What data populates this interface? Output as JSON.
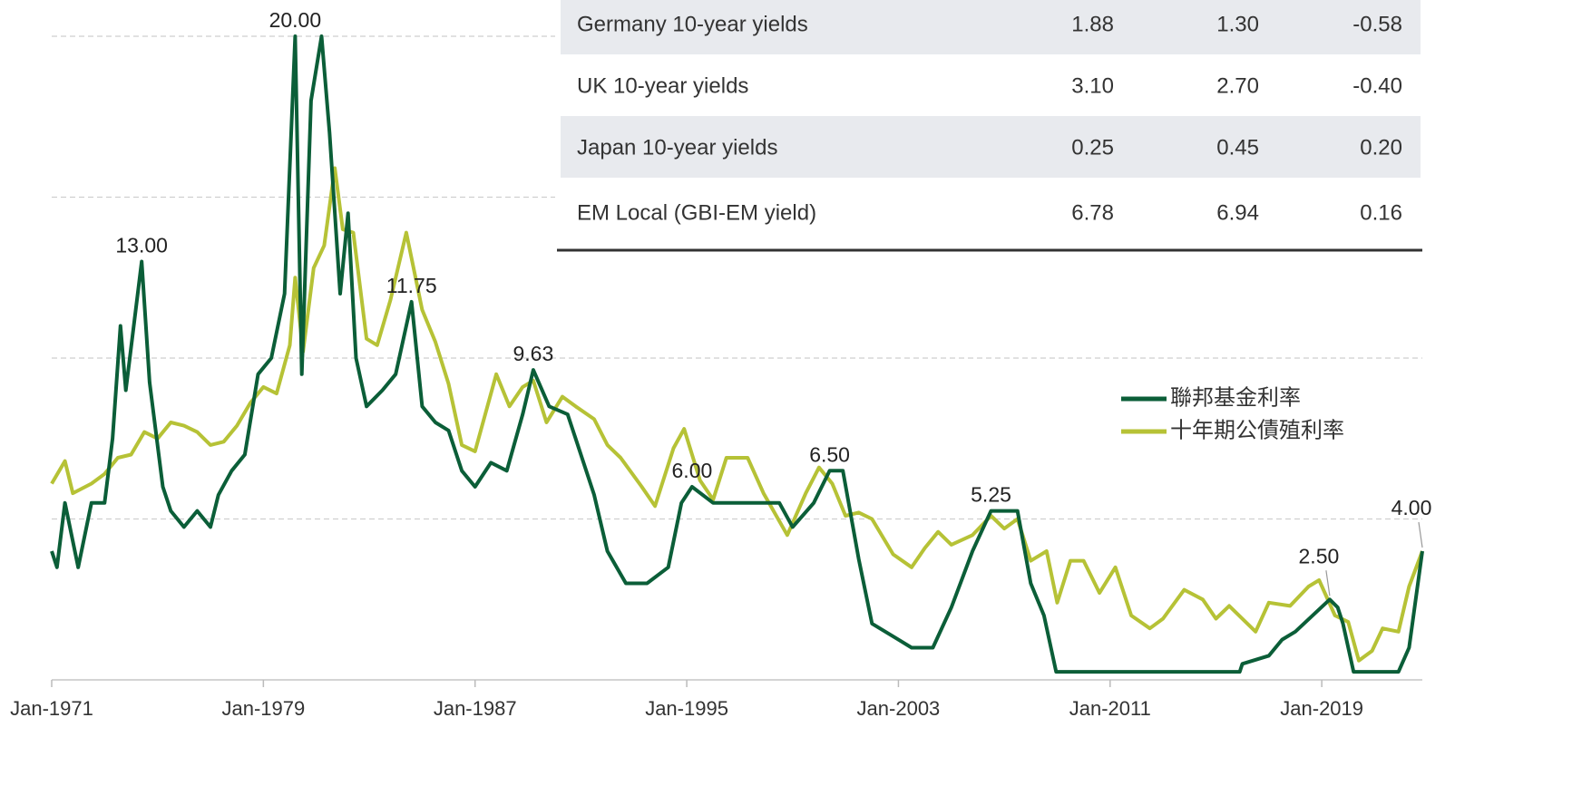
{
  "chart_data": {
    "type": "line",
    "xlim": [
      1971,
      2022.8
    ],
    "ylim": [
      0,
      21.1
    ],
    "xticks": [
      {
        "value": 1971,
        "label": "Jan-1971"
      },
      {
        "value": 1979,
        "label": "Jan-1979"
      },
      {
        "value": 1987,
        "label": "Jan-1987"
      },
      {
        "value": 1995,
        "label": "Jan-1995"
      },
      {
        "value": 2003,
        "label": "Jan-2003"
      },
      {
        "value": 2011,
        "label": "Jan-2011"
      },
      {
        "value": 2019,
        "label": "Jan-2019"
      }
    ],
    "yticks": [
      0,
      5,
      10,
      15,
      20
    ],
    "grid": true,
    "series": [
      {
        "name": "十年期公債殖利率",
        "color": "#b6c236",
        "x": [
          1971.0,
          1971.5,
          1971.8,
          1972.5,
          1973.0,
          1973.5,
          1974.0,
          1974.5,
          1975.0,
          1975.5,
          1976.0,
          1976.5,
          1977.0,
          1977.5,
          1978.0,
          1978.5,
          1979.0,
          1979.5,
          1980.0,
          1980.2,
          1980.5,
          1980.9,
          1981.3,
          1981.7,
          1982.0,
          1982.4,
          1982.9,
          1983.3,
          1983.8,
          1984.4,
          1985.0,
          1985.5,
          1986.0,
          1986.5,
          1987.0,
          1987.8,
          1988.3,
          1988.8,
          1989.2,
          1989.7,
          1990.3,
          1990.8,
          1991.5,
          1992.0,
          1992.5,
          1993.3,
          1993.8,
          1994.5,
          1994.9,
          1995.5,
          1996.0,
          1996.5,
          1997.3,
          1997.9,
          1998.8,
          1999.5,
          2000.0,
          2000.5,
          2001.0,
          2001.5,
          2002.0,
          2002.8,
          2003.5,
          2004.0,
          2004.5,
          2005.0,
          2005.8,
          2006.5,
          2007.0,
          2007.5,
          2008.0,
          2008.6,
          2009.0,
          2009.5,
          2010.0,
          2010.6,
          2011.2,
          2011.8,
          2012.5,
          2013.0,
          2013.8,
          2014.5,
          2015.0,
          2015.5,
          2016.5,
          2017.0,
          2017.8,
          2018.5,
          2018.9,
          2019.5,
          2020.0,
          2020.4,
          2020.9,
          2021.3,
          2021.9,
          2022.3,
          2022.8
        ],
        "values": [
          6.1,
          6.8,
          5.8,
          6.1,
          6.4,
          6.9,
          7.0,
          7.7,
          7.5,
          8.0,
          7.9,
          7.7,
          7.3,
          7.4,
          7.9,
          8.6,
          9.1,
          8.9,
          10.4,
          12.5,
          10.2,
          12.8,
          13.5,
          15.9,
          14.0,
          13.9,
          10.6,
          10.4,
          11.8,
          13.9,
          11.5,
          10.5,
          9.2,
          7.3,
          7.1,
          9.5,
          8.5,
          9.1,
          9.3,
          8.0,
          8.8,
          8.5,
          8.1,
          7.3,
          6.9,
          6.0,
          5.4,
          7.2,
          7.8,
          6.2,
          5.6,
          6.9,
          6.9,
          5.8,
          4.5,
          5.8,
          6.6,
          6.1,
          5.1,
          5.2,
          5.0,
          3.9,
          3.5,
          4.1,
          4.6,
          4.2,
          4.5,
          5.1,
          4.7,
          5.0,
          3.7,
          4.0,
          2.4,
          3.7,
          3.7,
          2.7,
          3.5,
          2.0,
          1.6,
          1.9,
          2.8,
          2.5,
          1.9,
          2.3,
          1.5,
          2.4,
          2.3,
          2.9,
          3.1,
          2.0,
          1.8,
          0.6,
          0.9,
          1.6,
          1.5,
          2.9,
          4.0
        ]
      },
      {
        "name": "聯邦基金利率",
        "color": "#0b5e38",
        "x": [
          1971.0,
          1971.2,
          1971.5,
          1972.0,
          1972.5,
          1973.0,
          1973.3,
          1973.6,
          1973.8,
          1974.4,
          1974.7,
          1975.2,
          1975.5,
          1976.0,
          1976.5,
          1977.0,
          1977.3,
          1977.8,
          1978.3,
          1978.8,
          1979.3,
          1979.8,
          1980.2,
          1980.45,
          1980.8,
          1981.2,
          1981.5,
          1981.9,
          1982.2,
          1982.5,
          1982.9,
          1983.5,
          1984.0,
          1984.6,
          1985.0,
          1985.5,
          1986.0,
          1986.5,
          1987.0,
          1987.6,
          1988.2,
          1988.8,
          1989.2,
          1989.8,
          1990.5,
          1991.0,
          1991.5,
          1992.0,
          1992.7,
          1993.5,
          1994.3,
          1994.8,
          1995.2,
          1996.0,
          1997.0,
          1998.5,
          1999.0,
          1999.8,
          2000.4,
          2000.9,
          2001.5,
          2002.0,
          2003.0,
          2003.5,
          2004.3,
          2005.0,
          2005.8,
          2006.5,
          2007.5,
          2008.0,
          2008.5,
          2008.96,
          2015.9,
          2016.0,
          2017.0,
          2017.5,
          2018.0,
          2019.3,
          2019.6,
          2019.8,
          2020.2,
          2021.9,
          2022.3,
          2022.8
        ],
        "values": [
          4.0,
          3.5,
          5.5,
          3.5,
          5.5,
          5.5,
          7.5,
          11.0,
          9.0,
          13.0,
          9.25,
          6.0,
          5.25,
          4.75,
          5.25,
          4.75,
          5.75,
          6.5,
          7.0,
          9.5,
          10.0,
          12.0,
          20.0,
          9.5,
          18.0,
          20.0,
          17.0,
          12.0,
          14.5,
          10.0,
          8.5,
          9.0,
          9.5,
          11.75,
          8.5,
          8.0,
          7.75,
          6.5,
          6.0,
          6.75,
          6.5,
          8.25,
          9.63,
          8.5,
          8.25,
          7.0,
          5.75,
          4.0,
          3.0,
          3.0,
          3.5,
          5.5,
          6.0,
          5.5,
          5.5,
          5.5,
          4.75,
          5.5,
          6.5,
          6.5,
          3.75,
          1.75,
          1.25,
          1.0,
          1.0,
          2.25,
          4.0,
          5.25,
          5.25,
          3.0,
          2.0,
          0.25,
          0.25,
          0.5,
          0.75,
          1.25,
          1.5,
          2.5,
          2.25,
          1.75,
          0.25,
          0.25,
          1.0,
          4.0
        ]
      }
    ],
    "annotations": [
      {
        "text": "13.00",
        "x": 1974.4,
        "y": 13.0
      },
      {
        "text": "20.00",
        "x": 1980.2,
        "y": 20.0
      },
      {
        "text": "11.75",
        "x": 1984.6,
        "y": 11.75
      },
      {
        "text": "9.63",
        "x": 1989.2,
        "y": 9.63
      },
      {
        "text": "6.00",
        "x": 1995.2,
        "y": 6.0
      },
      {
        "text": "6.50",
        "x": 2000.4,
        "y": 6.5
      },
      {
        "text": "5.25",
        "x": 2006.5,
        "y": 5.25
      },
      {
        "text": "2.50",
        "x": 2019.3,
        "y": 2.5
      },
      {
        "text": "4.00",
        "x": 2022.8,
        "y": 4.0
      }
    ]
  },
  "table": {
    "rows": [
      [
        "Germany 10-year yields",
        "1.88",
        "1.30",
        "-0.58"
      ],
      [
        "UK 10-year yields",
        "3.10",
        "2.70",
        "-0.40"
      ],
      [
        "Japan 10-year yields",
        "0.25",
        "0.45",
        "0.20"
      ],
      [
        "EM Local (GBI-EM yield)",
        "6.78",
        "6.94",
        "0.16"
      ]
    ]
  }
}
